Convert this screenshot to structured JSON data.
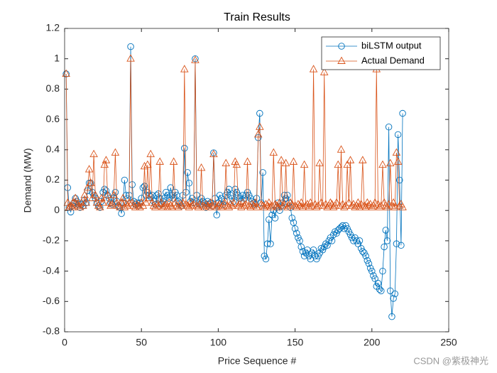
{
  "chart_data": {
    "type": "line",
    "title": "Train Results",
    "x_label": "Price Sequence #",
    "y_label": "Demand (MW)",
    "watermark": "CSDN @紫极神光",
    "legend": "northeast",
    "grid": false,
    "xlim": [
      0,
      250
    ],
    "xticks": [
      0,
      50,
      100,
      150,
      200,
      250
    ],
    "ylim": [
      -0.8,
      1.2
    ],
    "yticks": [
      -0.8,
      -0.6,
      -0.4,
      -0.2,
      0,
      0.2,
      0.4,
      0.6,
      0.8,
      1,
      1.2
    ],
    "x": [
      1,
      2,
      3,
      4,
      5,
      6,
      7,
      8,
      9,
      10,
      11,
      12,
      13,
      14,
      15,
      16,
      17,
      18,
      19,
      20,
      21,
      22,
      23,
      24,
      25,
      26,
      27,
      28,
      29,
      30,
      31,
      32,
      33,
      34,
      35,
      36,
      37,
      38,
      39,
      40,
      41,
      42,
      43,
      44,
      45,
      46,
      47,
      48,
      49,
      50,
      51,
      52,
      53,
      54,
      55,
      56,
      57,
      58,
      59,
      60,
      61,
      62,
      63,
      64,
      65,
      66,
      67,
      68,
      69,
      70,
      71,
      72,
      73,
      74,
      75,
      76,
      77,
      78,
      79,
      80,
      81,
      82,
      83,
      84,
      85,
      86,
      87,
      88,
      89,
      90,
      91,
      92,
      93,
      94,
      95,
      96,
      97,
      98,
      99,
      100,
      101,
      102,
      103,
      104,
      105,
      106,
      107,
      108,
      109,
      110,
      111,
      112,
      113,
      114,
      115,
      116,
      117,
      118,
      119,
      120,
      121,
      122,
      123,
      124,
      125,
      126,
      127,
      128,
      129,
      130,
      131,
      132,
      133,
      134,
      135,
      136,
      137,
      138,
      139,
      140,
      141,
      142,
      143,
      144,
      145,
      146,
      147,
      148,
      149,
      150,
      151,
      152,
      153,
      154,
      155,
      156,
      157,
      158,
      159,
      160,
      161,
      162,
      163,
      164,
      165,
      166,
      167,
      168,
      169,
      170,
      171,
      172,
      173,
      174,
      175,
      176,
      177,
      178,
      179,
      180,
      181,
      182,
      183,
      184,
      185,
      186,
      187,
      188,
      189,
      190,
      191,
      192,
      193,
      194,
      195,
      196,
      197,
      198,
      199,
      200,
      201,
      202,
      203,
      204,
      205,
      206,
      207,
      208,
      209,
      210,
      211,
      212,
      213,
      214,
      215,
      216,
      217,
      218,
      219,
      220
    ],
    "series": [
      {
        "name": "biLSTM output",
        "color": "#0072BD",
        "marker": "circle",
        "values": [
          0.9,
          0.15,
          0.02,
          -0.01,
          0.03,
          0.05,
          0.08,
          0.06,
          0.04,
          0.02,
          0.04,
          0.03,
          0.07,
          0.05,
          0.13,
          0.18,
          0.18,
          0.12,
          0.1,
          0.08,
          0.05,
          0.03,
          0.02,
          0.06,
          0.12,
          0.14,
          0.13,
          0.1,
          0.08,
          0.05,
          0.04,
          0.08,
          0.12,
          0.06,
          0.03,
          0.02,
          -0.02,
          0.05,
          0.2,
          0.1,
          0.08,
          0.1,
          1.08,
          0.17,
          0.06,
          0.04,
          0.05,
          0.03,
          0.05,
          0.08,
          0.15,
          0.16,
          0.1,
          0.12,
          0.1,
          0.09,
          0.1,
          0.06,
          0.04,
          0.1,
          0.11,
          0.08,
          0.04,
          0.06,
          0.08,
          0.12,
          0.1,
          0.08,
          0.15,
          0.1,
          0.08,
          0.12,
          0.1,
          0.06,
          0.05,
          0.03,
          0.1,
          0.41,
          0.12,
          0.25,
          0.18,
          0.06,
          0.08,
          0.05,
          1.0,
          0.1,
          0.05,
          0.04,
          0.08,
          0.06,
          0.05,
          0.02,
          0.06,
          0.04,
          0.05,
          0.03,
          0.38,
          0.08,
          -0.03,
          0.05,
          0.1,
          0.08,
          0.04,
          0.06,
          0.1,
          0.12,
          0.14,
          0.1,
          0.08,
          0.06,
          0.14,
          0.12,
          0.1,
          0.08,
          0.06,
          0.1,
          0.08,
          0.1,
          0.12,
          0.1,
          0.08,
          0.06,
          0.05,
          0.04,
          0.08,
          0.48,
          0.64,
          0.05,
          0.25,
          -0.3,
          -0.32,
          -0.22,
          -0.06,
          -0.22,
          -0.03,
          0.0,
          -0.05,
          0.02,
          0.05,
          0.0,
          0.03,
          0.05,
          0.1,
          0.08,
          0.1,
          0.05,
          0.02,
          -0.05,
          -0.08,
          -0.12,
          -0.15,
          -0.18,
          -0.2,
          -0.24,
          -0.27,
          -0.3,
          -0.28,
          -0.26,
          -0.3,
          -0.32,
          -0.28,
          -0.26,
          -0.3,
          -0.32,
          -0.3,
          -0.28,
          -0.25,
          -0.26,
          -0.24,
          -0.22,
          -0.23,
          -0.2,
          -0.18,
          -0.2,
          -0.16,
          -0.14,
          -0.15,
          -0.13,
          -0.12,
          -0.11,
          -0.1,
          -0.12,
          -0.1,
          -0.12,
          -0.14,
          -0.16,
          -0.18,
          -0.2,
          -0.18,
          -0.2,
          -0.22,
          -0.2,
          -0.25,
          -0.27,
          -0.28,
          -0.3,
          -0.33,
          -0.35,
          -0.38,
          -0.4,
          -0.43,
          -0.45,
          -0.5,
          -0.48,
          -0.52,
          -0.53,
          -0.4,
          -0.24,
          -0.13,
          -0.2,
          0.55,
          -0.53,
          -0.7,
          -0.58,
          -0.55,
          -0.22,
          0.5,
          0.2,
          -0.23,
          0.64
        ]
      },
      {
        "name": "Actual Demand",
        "color": "#D95319",
        "marker": "triangle",
        "values": [
          0.9,
          0.05,
          0.02,
          0.03,
          0.02,
          0.05,
          0.08,
          0.04,
          0.03,
          0.02,
          0.05,
          0.03,
          0.1,
          0.05,
          0.15,
          0.27,
          0.18,
          0.08,
          0.37,
          0.1,
          0.05,
          0.03,
          0.02,
          0.08,
          0.05,
          0.3,
          0.33,
          0.1,
          0.05,
          0.03,
          0.04,
          0.1,
          0.38,
          0.05,
          0.03,
          0.02,
          0.05,
          0.08,
          0.02,
          0.04,
          0.03,
          0.05,
          1.0,
          0.05,
          0.03,
          0.02,
          0.04,
          0.03,
          0.02,
          0.05,
          0.03,
          0.29,
          0.05,
          0.3,
          0.08,
          0.37,
          0.05,
          0.03,
          0.02,
          0.04,
          0.03,
          0.32,
          0.05,
          0.02,
          0.03,
          0.04,
          0.02,
          0.05,
          0.03,
          0.02,
          0.32,
          0.05,
          0.03,
          0.02,
          0.04,
          0.03,
          0.05,
          0.93,
          0.04,
          0.03,
          0.02,
          0.05,
          0.03,
          0.04,
          0.99,
          0.03,
          0.02,
          0.04,
          0.28,
          0.03,
          0.02,
          0.04,
          0.03,
          0.02,
          0.05,
          0.03,
          0.37,
          0.04,
          0.02,
          0.03,
          0.04,
          0.02,
          0.03,
          0.05,
          0.31,
          0.03,
          0.02,
          0.04,
          0.03,
          0.05,
          0.32,
          0.3,
          0.03,
          0.04,
          0.02,
          0.05,
          0.03,
          0.04,
          0.32,
          0.03,
          0.02,
          0.04,
          0.03,
          0.05,
          0.02,
          0.5,
          0.55,
          0.04,
          0.03,
          0.02,
          0.04,
          0.03,
          0.05,
          0.02,
          0.03,
          0.38,
          0.04,
          0.03,
          0.02,
          0.05,
          0.33,
          0.03,
          0.04,
          0.31,
          0.02,
          0.03,
          0.05,
          0.04,
          0.32,
          0.03,
          0.02,
          0.04,
          0.03,
          0.05,
          0.02,
          0.3,
          0.03,
          0.04,
          0.02,
          0.05,
          0.03,
          0.93,
          0.04,
          0.02,
          0.03,
          0.31,
          0.05,
          0.03,
          0.91,
          0.04,
          0.02,
          0.03,
          0.05,
          0.04,
          0.02,
          0.03,
          0.05,
          0.3,
          0.03,
          0.4,
          0.04,
          0.02,
          0.03,
          0.3,
          0.05,
          0.33,
          0.03,
          0.04,
          0.02,
          0.03,
          0.05,
          0.02,
          0.04,
          0.33,
          0.03,
          0.02,
          0.05,
          0.03,
          0.04,
          0.02,
          0.03,
          0.05,
          0.93,
          0.04,
          0.02,
          0.03,
          0.3,
          0.05,
          0.03,
          0.02,
          0.04,
          0.31,
          0.03,
          0.05,
          0.02,
          0.38,
          0.32,
          0.03,
          0.04,
          0.02
        ]
      }
    ]
  }
}
